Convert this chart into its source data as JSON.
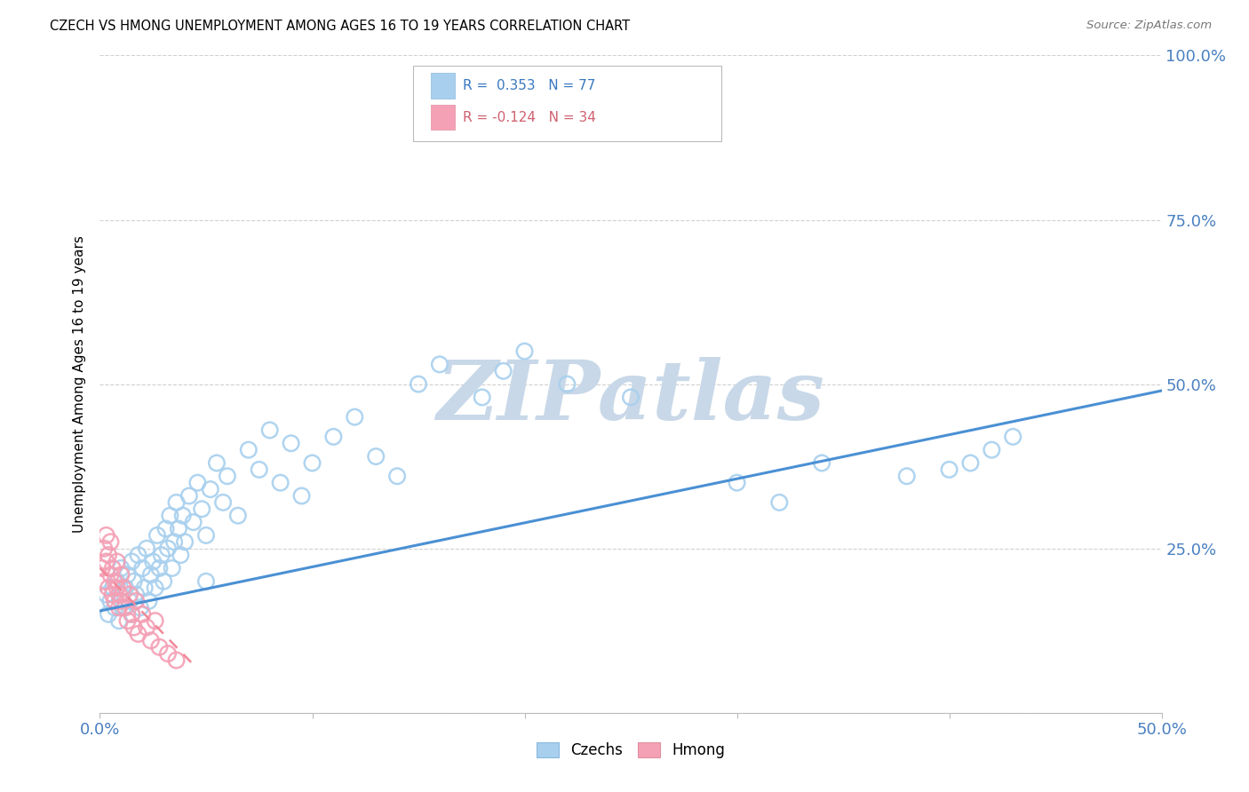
{
  "title": "CZECH VS HMONG UNEMPLOYMENT AMONG AGES 16 TO 19 YEARS CORRELATION CHART",
  "source": "Source: ZipAtlas.com",
  "ylabel": "Unemployment Among Ages 16 to 19 years",
  "xlim": [
    0.0,
    0.5
  ],
  "ylim": [
    0.0,
    1.0
  ],
  "xticks": [
    0.0,
    0.1,
    0.2,
    0.3,
    0.4,
    0.5
  ],
  "yticks": [
    0.0,
    0.25,
    0.5,
    0.75,
    1.0
  ],
  "xticklabels": [
    "0.0%",
    "",
    "",
    "",
    "",
    "50.0%"
  ],
  "yticklabels": [
    "",
    "25.0%",
    "50.0%",
    "75.0%",
    "100.0%"
  ],
  "czech_R": 0.353,
  "czech_N": 77,
  "hmong_R": -0.124,
  "hmong_N": 34,
  "czech_color": "#a8d0ee",
  "hmong_color": "#f4a0b5",
  "trendline_czech_color": "#4a90d4",
  "trendline_hmong_color": "#f08898",
  "watermark": "ZIPatlas",
  "watermark_color": "#c8d8e8",
  "legend_label_czech": "Czechs",
  "legend_label_hmong": "Hmong",
  "czech_x": [
    0.003,
    0.004,
    0.005,
    0.006,
    0.007,
    0.008,
    0.009,
    0.01,
    0.01,
    0.011,
    0.012,
    0.013,
    0.014,
    0.015,
    0.015,
    0.016,
    0.017,
    0.018,
    0.019,
    0.02,
    0.021,
    0.022,
    0.023,
    0.024,
    0.025,
    0.026,
    0.027,
    0.028,
    0.029,
    0.03,
    0.031,
    0.032,
    0.033,
    0.034,
    0.035,
    0.036,
    0.037,
    0.038,
    0.039,
    0.04,
    0.042,
    0.044,
    0.046,
    0.048,
    0.05,
    0.052,
    0.055,
    0.058,
    0.06,
    0.065,
    0.07,
    0.075,
    0.08,
    0.085,
    0.09,
    0.095,
    0.1,
    0.11,
    0.12,
    0.13,
    0.14,
    0.15,
    0.16,
    0.18,
    0.19,
    0.2,
    0.22,
    0.25,
    0.3,
    0.32,
    0.34,
    0.38,
    0.4,
    0.41,
    0.42,
    0.43,
    0.05
  ],
  "czech_y": [
    0.18,
    0.15,
    0.17,
    0.19,
    0.16,
    0.2,
    0.14,
    0.18,
    0.22,
    0.16,
    0.19,
    0.21,
    0.17,
    0.23,
    0.15,
    0.2,
    0.18,
    0.24,
    0.16,
    0.22,
    0.19,
    0.25,
    0.17,
    0.21,
    0.23,
    0.19,
    0.27,
    0.22,
    0.24,
    0.2,
    0.28,
    0.25,
    0.3,
    0.22,
    0.26,
    0.32,
    0.28,
    0.24,
    0.3,
    0.26,
    0.33,
    0.29,
    0.35,
    0.31,
    0.27,
    0.34,
    0.38,
    0.32,
    0.36,
    0.3,
    0.4,
    0.37,
    0.43,
    0.35,
    0.41,
    0.33,
    0.38,
    0.42,
    0.45,
    0.39,
    0.36,
    0.5,
    0.53,
    0.48,
    0.52,
    0.55,
    0.5,
    0.48,
    0.35,
    0.32,
    0.38,
    0.36,
    0.37,
    0.38,
    0.4,
    0.42,
    0.2
  ],
  "hmong_x": [
    0.001,
    0.002,
    0.002,
    0.003,
    0.003,
    0.004,
    0.004,
    0.005,
    0.005,
    0.006,
    0.006,
    0.007,
    0.007,
    0.008,
    0.008,
    0.009,
    0.009,
    0.01,
    0.01,
    0.011,
    0.012,
    0.013,
    0.014,
    0.015,
    0.016,
    0.017,
    0.018,
    0.02,
    0.022,
    0.024,
    0.026,
    0.028,
    0.032,
    0.036
  ],
  "hmong_y": [
    0.22,
    0.25,
    0.2,
    0.23,
    0.27,
    0.19,
    0.24,
    0.21,
    0.26,
    0.18,
    0.22,
    0.2,
    0.17,
    0.19,
    0.23,
    0.18,
    0.16,
    0.21,
    0.17,
    0.19,
    0.16,
    0.14,
    0.18,
    0.15,
    0.13,
    0.17,
    0.12,
    0.15,
    0.13,
    0.11,
    0.14,
    0.1,
    0.09,
    0.08
  ],
  "czech_trendline_x0": 0.0,
  "czech_trendline_y0": 0.155,
  "czech_trendline_x1": 0.5,
  "czech_trendline_y1": 0.49,
  "hmong_trendline_x0": 0.0,
  "hmong_trendline_y0": 0.22,
  "hmong_trendline_x1": 0.045,
  "hmong_trendline_y1": 0.07
}
